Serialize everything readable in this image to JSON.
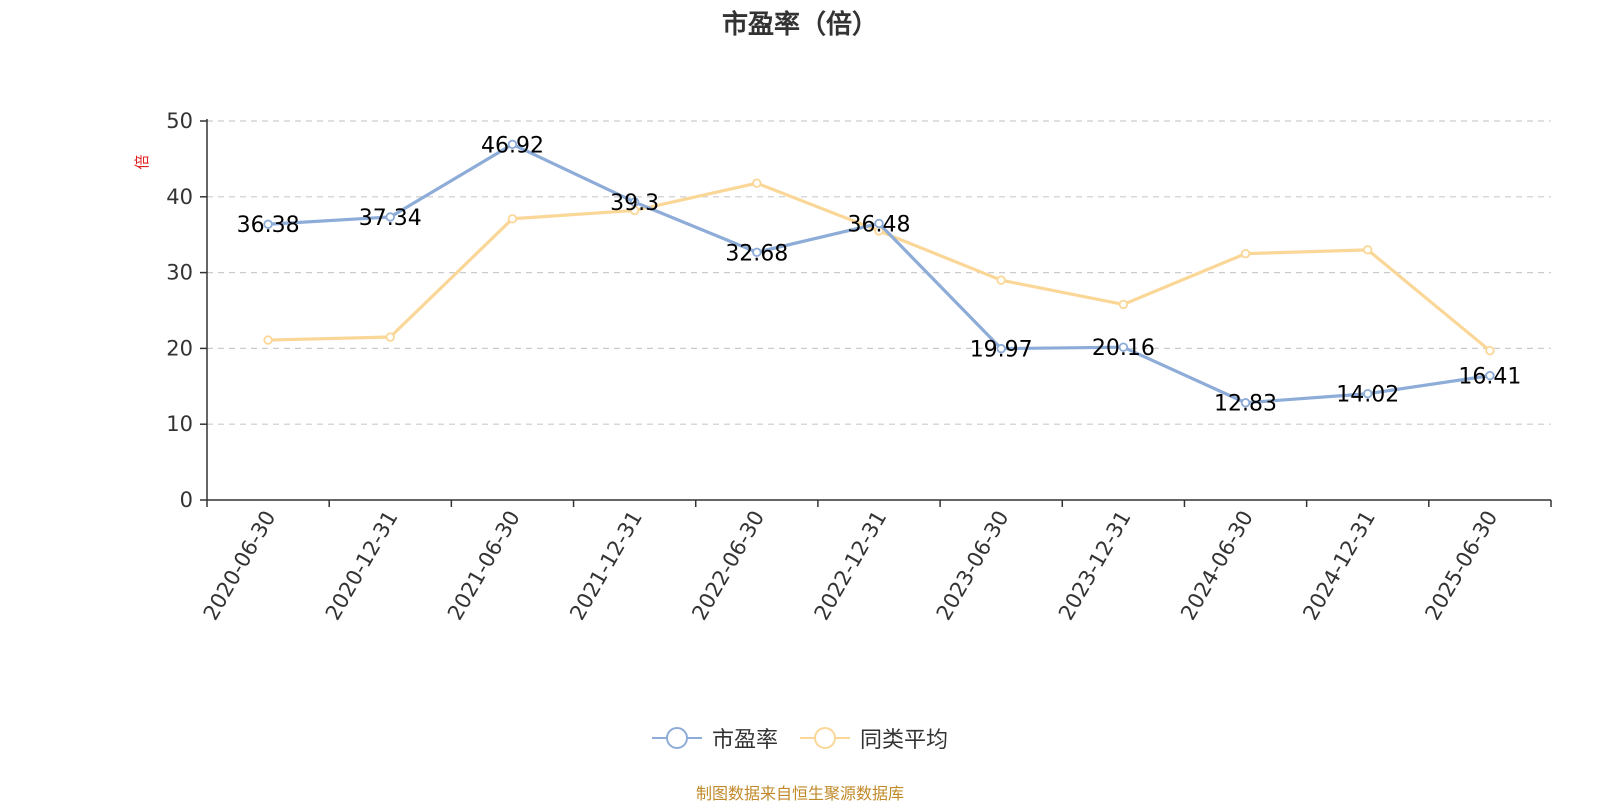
{
  "title": "市盈率（倍）",
  "source_note": "制图数据来自恒生聚源数据库",
  "colors": {
    "series_pe": "#8eacd8",
    "series_avg": "#fad797",
    "source_note": "#c08a2a",
    "axis": "#333333",
    "grid": "#cccccc",
    "unit_label": "#e02020"
  },
  "chart_data": {
    "type": "line",
    "title": "市盈率（倍）",
    "ylabel": "倍",
    "ylim": [
      0,
      50
    ],
    "yticks": [
      0,
      10,
      20,
      30,
      40,
      50
    ],
    "grid": true,
    "legend_position": "bottom-center",
    "categories": [
      "2020-06-30",
      "2020-12-31",
      "2021-06-30",
      "2021-12-31",
      "2022-06-30",
      "2022-12-31",
      "2023-06-30",
      "2023-12-31",
      "2024-06-30",
      "2024-12-31",
      "2025-06-30"
    ],
    "series": [
      {
        "name": "市盈率",
        "color": "#8eacd8",
        "show_labels": true,
        "values": [
          36.38,
          37.34,
          46.92,
          39.3,
          32.68,
          36.48,
          19.97,
          20.16,
          12.83,
          14.02,
          16.41
        ]
      },
      {
        "name": "同类平均",
        "color": "#fad797",
        "show_labels": false,
        "values": [
          21.1,
          21.5,
          37.1,
          38.2,
          41.8,
          35.5,
          29.0,
          25.8,
          32.5,
          33.0,
          19.7
        ]
      }
    ]
  }
}
